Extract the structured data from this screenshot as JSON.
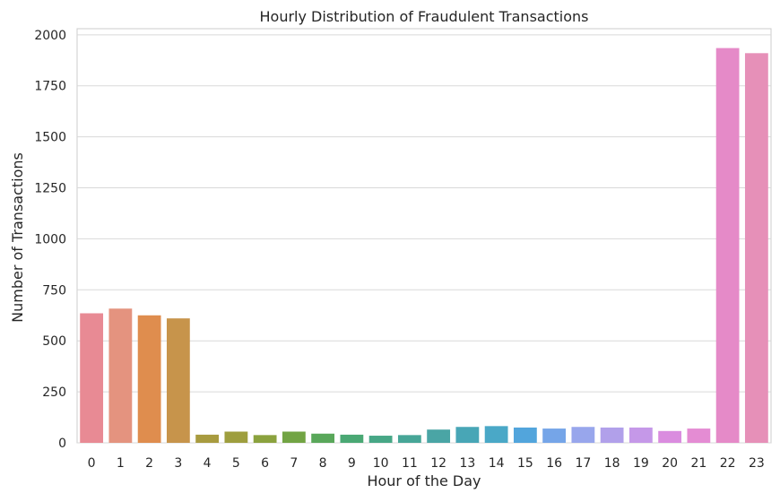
{
  "chart_data": {
    "type": "bar",
    "title": "Hourly Distribution of Fraudulent Transactions",
    "xlabel": "Hour of the Day",
    "ylabel": "Number of Transactions",
    "categories": [
      "0",
      "1",
      "2",
      "3",
      "4",
      "5",
      "6",
      "7",
      "8",
      "9",
      "10",
      "11",
      "12",
      "13",
      "14",
      "15",
      "16",
      "17",
      "18",
      "19",
      "20",
      "21",
      "22",
      "23"
    ],
    "values": [
      635,
      658,
      625,
      610,
      40,
      55,
      38,
      55,
      45,
      40,
      35,
      38,
      65,
      78,
      82,
      75,
      70,
      78,
      75,
      75,
      58,
      70,
      1935,
      1910
    ],
    "ylim": [
      0,
      2030
    ],
    "yticks": [
      "0",
      "250",
      "500",
      "750",
      "1000",
      "1250",
      "1500",
      "1750",
      "2000"
    ],
    "grid": "horizontal",
    "legend": "none",
    "colors": [
      "#e88a94",
      "#e4937f",
      "#df8d4e",
      "#c7944b",
      "#a89b3f",
      "#9e9e3e",
      "#8ba23e",
      "#72a444",
      "#59a75a",
      "#4aa874",
      "#47a786",
      "#47a697",
      "#4aa5a5",
      "#48a6b6",
      "#4aa8c7",
      "#52a5dc",
      "#75a5e8",
      "#98a6ec",
      "#b1a0ea",
      "#c598e8",
      "#da8cdf",
      "#e48cd3",
      "#e58ac8",
      "#e690b8"
    ]
  }
}
